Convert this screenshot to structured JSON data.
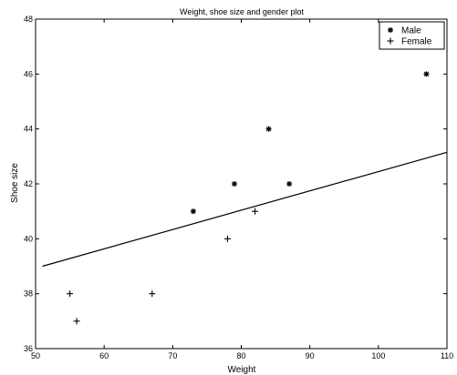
{
  "chart_data": {
    "type": "scatter",
    "title": "Weight, shoe size and gender plot",
    "xlabel": "Weight",
    "ylabel": "Shoe size",
    "xlim": [
      50,
      110
    ],
    "ylim": [
      36,
      48
    ],
    "xticks": [
      50,
      60,
      70,
      80,
      90,
      100,
      110
    ],
    "yticks": [
      36,
      38,
      40,
      42,
      44,
      46,
      48
    ],
    "xtick_labels": [
      "50",
      "60",
      "70",
      "80",
      "90",
      "100",
      "110"
    ],
    "ytick_labels": [
      "36",
      "38",
      "40",
      "42",
      "44",
      "46",
      "48"
    ],
    "grid": false,
    "legend_position": "top-right",
    "series": [
      {
        "name": "Male",
        "marker": "asterisk",
        "points": [
          {
            "x": 73,
            "y": 41
          },
          {
            "x": 79,
            "y": 42
          },
          {
            "x": 84,
            "y": 44
          },
          {
            "x": 87,
            "y": 42
          },
          {
            "x": 107,
            "y": 46
          }
        ]
      },
      {
        "name": "Female",
        "marker": "plus",
        "points": [
          {
            "x": 55,
            "y": 38
          },
          {
            "x": 56,
            "y": 37
          },
          {
            "x": 67,
            "y": 38
          },
          {
            "x": 78,
            "y": 40
          },
          {
            "x": 82,
            "y": 41
          }
        ]
      }
    ],
    "fit_line": {
      "type": "line",
      "points": [
        {
          "x": 51,
          "y": 39.0
        },
        {
          "x": 110,
          "y": 43.15
        }
      ]
    }
  }
}
